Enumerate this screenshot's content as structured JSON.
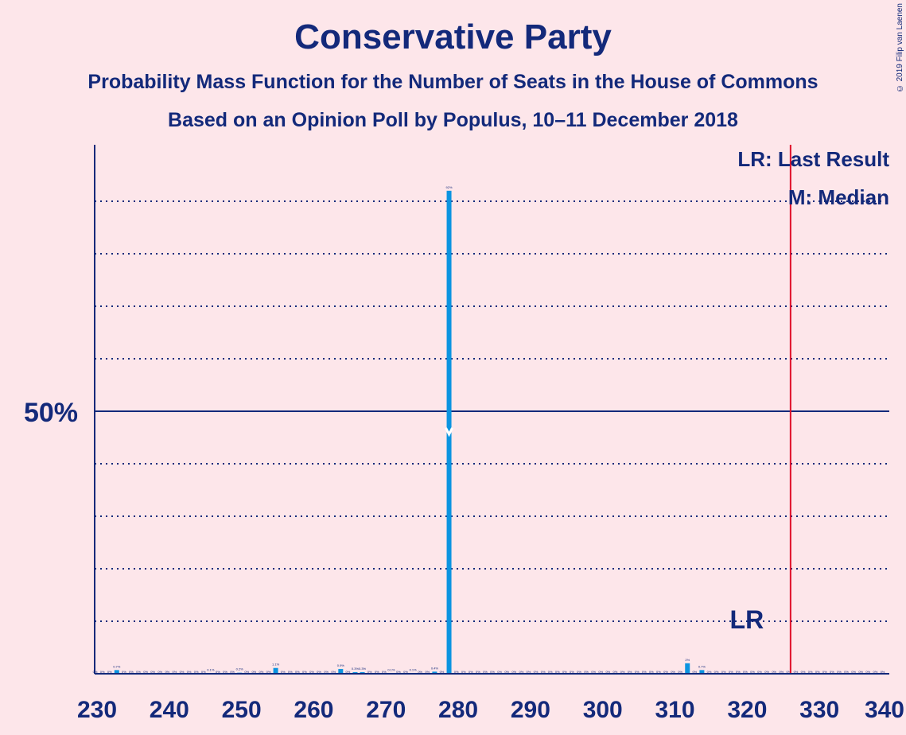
{
  "title": "Conservative Party",
  "subtitle": "Probability Mass Function for the Number of Seats in the House of Commons",
  "subtitle2": "Based on an Opinion Poll by Populus, 10–11 December 2018",
  "copyright": "© 2019 Filip van Laenen",
  "legend": {
    "last_result": "LR: Last Result",
    "median": "M: Median"
  },
  "lr_label": "LR",
  "colors": {
    "bar": "#0b94e0",
    "text": "#13297a",
    "last_result_line": "#e0102a",
    "background": "#fde6ea"
  },
  "chart_data": {
    "type": "bar",
    "x_ticks": [
      230,
      240,
      250,
      260,
      270,
      280,
      290,
      300,
      310,
      320,
      330,
      340
    ],
    "xlim": [
      230,
      340
    ],
    "ylim": [
      0,
      100
    ],
    "y_tick_label": "50%",
    "y_tick_value": 50,
    "gridlines": [
      10,
      20,
      30,
      40,
      60,
      70,
      80,
      90
    ],
    "median": 279,
    "last_result": 326,
    "bars": [
      {
        "seats": 233,
        "value": 0.7,
        "label": "0.7%"
      },
      {
        "seats": 246,
        "value": 0.1,
        "label": "0.1%"
      },
      {
        "seats": 250,
        "value": 0.2,
        "label": "0.2%"
      },
      {
        "seats": 255,
        "value": 1.1,
        "label": "1.1%"
      },
      {
        "seats": 264,
        "value": 0.9,
        "label": "0.9%"
      },
      {
        "seats": 266,
        "value": 0.3,
        "label": "0.3%"
      },
      {
        "seats": 267,
        "value": 0.3,
        "label": "0.3%"
      },
      {
        "seats": 271,
        "value": 0.1,
        "label": "0.1%"
      },
      {
        "seats": 274,
        "value": 0.1,
        "label": "0.1%"
      },
      {
        "seats": 277,
        "value": 0.4,
        "label": "0.4%"
      },
      {
        "seats": 279,
        "value": 92,
        "label": "92%"
      },
      {
        "seats": 312,
        "value": 2,
        "label": "2%"
      },
      {
        "seats": 314,
        "value": 0.7,
        "label": "0.7%"
      }
    ],
    "zero_label": "0%"
  }
}
